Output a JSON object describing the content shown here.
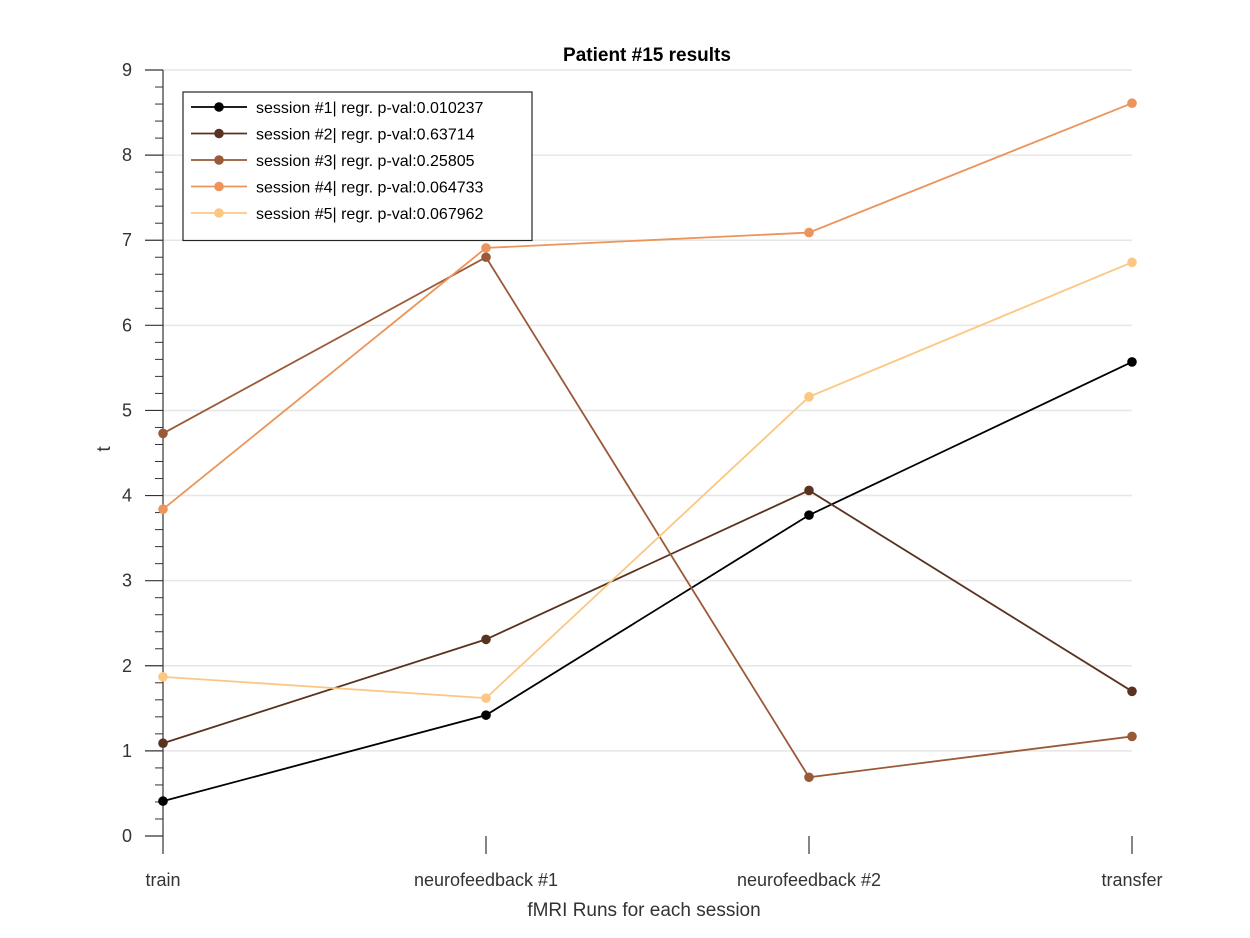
{
  "chart_data": {
    "type": "line",
    "title": "Patient #15 results",
    "xlabel": "fMRI Runs for each session",
    "ylabel": "t",
    "categories": [
      "train",
      "neurofeedback #1",
      "neurofeedback #2",
      "transfer"
    ],
    "ylim": [
      0,
      9
    ],
    "yticks": [
      0,
      1,
      2,
      3,
      4,
      5,
      6,
      7,
      8,
      9
    ],
    "grid": "horizontal",
    "legend_position": "top-left",
    "series": [
      {
        "name": "session #1| regr. p-val:0.010237",
        "color": "#000000",
        "values": [
          0.41,
          1.42,
          3.77,
          5.57
        ]
      },
      {
        "name": "session #2| regr. p-val:0.63714",
        "color": "#5a3320",
        "values": [
          1.09,
          2.31,
          4.06,
          1.7
        ]
      },
      {
        "name": "session #3| regr. p-val:0.25805",
        "color": "#9a5a38",
        "values": [
          4.73,
          6.8,
          0.69,
          1.17
        ]
      },
      {
        "name": "session #4| regr. p-val:0.064733",
        "color": "#ec9459",
        "values": [
          3.84,
          6.91,
          7.09,
          8.61
        ]
      },
      {
        "name": "session #5| regr. p-val:0.067962",
        "color": "#fbc783",
        "values": [
          1.87,
          1.62,
          5.16,
          6.74
        ]
      }
    ]
  }
}
